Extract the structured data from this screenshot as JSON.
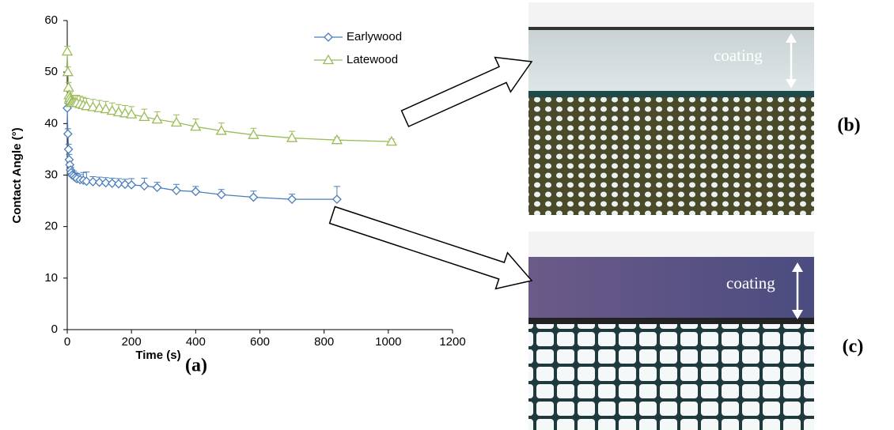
{
  "chart_data": {
    "type": "line",
    "x_label": "Time (s)",
    "y_label": "Contact Angle (°)",
    "xlim": [
      0,
      1200
    ],
    "xticks": [
      0,
      200,
      400,
      600,
      800,
      1000,
      1200
    ],
    "ylim": [
      0,
      60
    ],
    "yticks": [
      0,
      10,
      20,
      30,
      40,
      50,
      60
    ],
    "legend": "top-right",
    "series": [
      {
        "name": "Earlywood",
        "color": "#4a7ebb",
        "marker": "diamond",
        "x": [
          0,
          2,
          4,
          6,
          8,
          10,
          12,
          15,
          20,
          25,
          30,
          40,
          50,
          60,
          80,
          100,
          120,
          140,
          160,
          180,
          200,
          240,
          280,
          340,
          400,
          480,
          580,
          700,
          840
        ],
        "values": [
          43,
          38,
          35,
          33,
          32,
          31,
          30.5,
          30,
          29.8,
          29.5,
          29.3,
          29.1,
          29,
          28.8,
          28.7,
          28.6,
          28.5,
          28.4,
          28.3,
          28.2,
          28.1,
          27.9,
          27.6,
          27,
          26.8,
          26.2,
          25.7,
          25.3,
          25.3
        ],
        "errors": [
          1,
          1,
          1,
          1,
          1,
          1,
          1,
          1,
          1,
          1,
          1,
          1,
          1.5,
          1.8,
          1,
          1,
          1,
          1,
          1,
          1,
          1.2,
          1.5,
          1,
          1.2,
          1,
          1,
          1.2,
          1,
          2.5
        ]
      },
      {
        "name": "Latewood",
        "color": "#9bbb59",
        "marker": "triangle",
        "x": [
          0,
          2,
          4,
          6,
          8,
          10,
          12,
          15,
          20,
          25,
          30,
          40,
          50,
          60,
          80,
          100,
          120,
          140,
          160,
          180,
          200,
          240,
          280,
          340,
          400,
          480,
          580,
          700,
          840,
          1010
        ],
        "values": [
          54,
          50,
          47,
          45.5,
          45,
          44.5,
          44,
          44,
          44,
          44,
          44,
          43.8,
          43.6,
          43.4,
          43.2,
          43,
          42.8,
          42.5,
          42.2,
          42,
          41.8,
          41.3,
          40.8,
          40.2,
          39.4,
          38.6,
          37.8,
          37.2,
          36.8,
          36.5
        ],
        "errors": [
          1,
          1,
          1,
          1,
          1,
          1,
          1.5,
          1.5,
          1.5,
          1.5,
          1.5,
          1.5,
          1.5,
          1.5,
          1.5,
          1.5,
          1.5,
          1.5,
          1.5,
          1.5,
          1.5,
          1.5,
          1.5,
          1.5,
          1.5,
          1.5,
          1.3,
          1.3,
          0.5,
          0.5
        ]
      }
    ]
  },
  "panels": [
    "(a)",
    "(b)",
    "(c)"
  ],
  "image_labels": [
    "coating",
    "coating"
  ]
}
